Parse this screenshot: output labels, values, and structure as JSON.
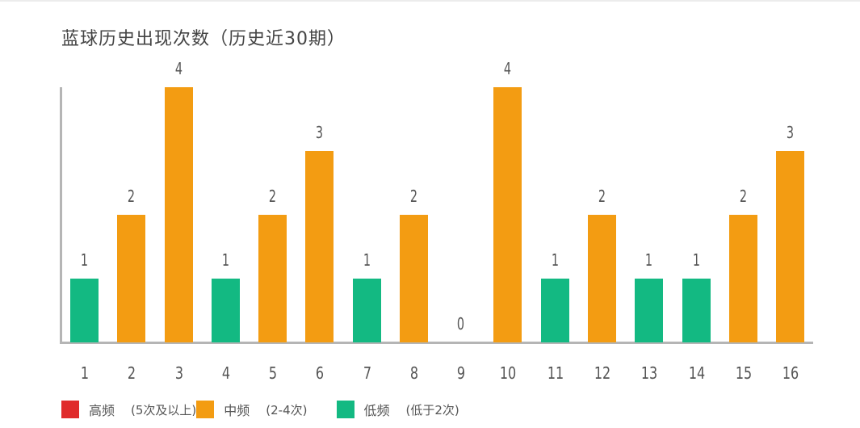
{
  "chart_data": {
    "type": "bar",
    "title": "蓝球历史出现次数（历史近30期）",
    "xlabel": "",
    "ylabel": "",
    "categories": [
      "1",
      "2",
      "3",
      "4",
      "5",
      "6",
      "7",
      "8",
      "9",
      "10",
      "11",
      "12",
      "13",
      "14",
      "15",
      "16"
    ],
    "values": [
      1,
      2,
      4,
      1,
      2,
      3,
      1,
      2,
      0,
      4,
      1,
      2,
      1,
      1,
      2,
      3
    ],
    "ylim": [
      0,
      4
    ],
    "grid": false,
    "data_labels": true,
    "legend_position": "bottom-left",
    "legend": [
      {
        "name": "高频",
        "range": "(5次及以上)",
        "color": "#e02b2b"
      },
      {
        "name": "中频",
        "range": "(2-4次)",
        "color": "#f39c12"
      },
      {
        "name": "低频",
        "range": "(低于2次)",
        "color": "#13b982"
      }
    ]
  },
  "colors": {
    "high": "#e02b2b",
    "mid": "#f39c12",
    "low": "#13b982",
    "axis": "#b5b5b5"
  }
}
